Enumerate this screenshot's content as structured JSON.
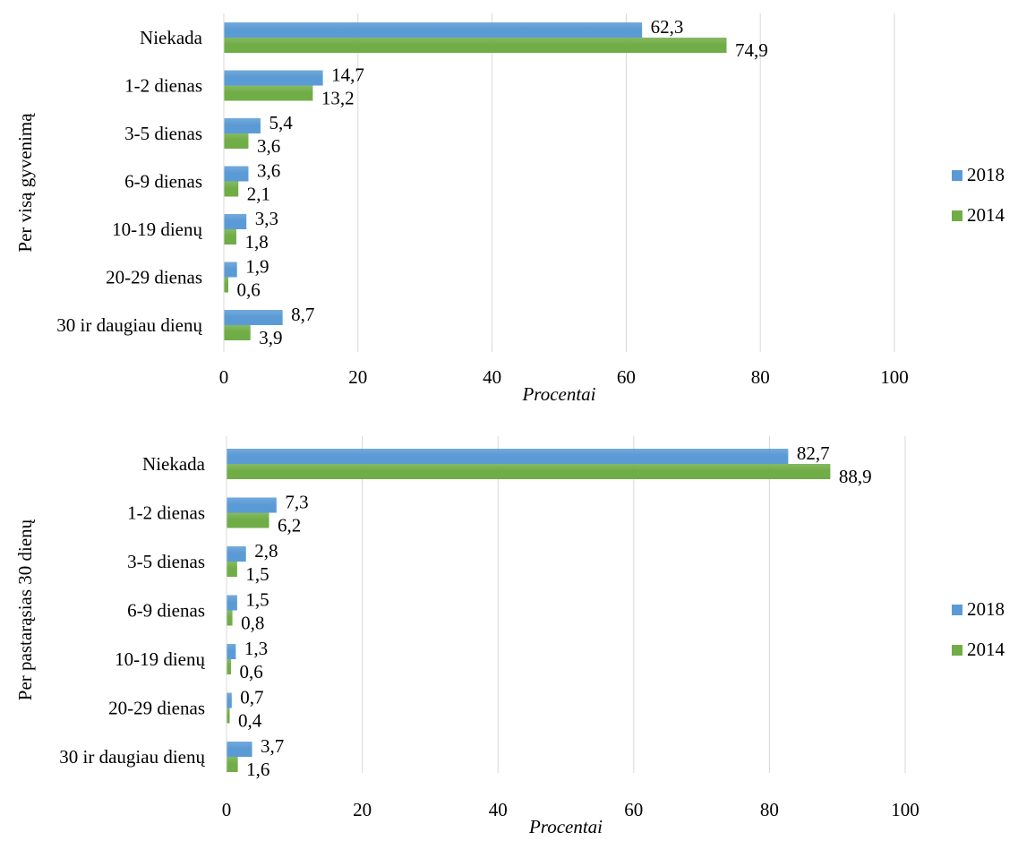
{
  "chart_data": [
    {
      "type": "bar",
      "orientation": "horizontal",
      "ylabel": "Per visą gyvenimą",
      "xlabel": "Procentai",
      "categories": [
        "Niekada",
        "1-2 dienas",
        "3-5 dienas",
        "6-9 dienas",
        "10-19 dienų",
        "20-29 dienas",
        "30 ir daugiau dienų"
      ],
      "series": [
        {
          "name": "2018",
          "color": "#5B9BD5",
          "values": [
            62.3,
            14.7,
            5.4,
            3.6,
            3.3,
            1.9,
            8.7
          ],
          "labels": [
            "62,3",
            "14,7",
            "5,4",
            "3,6",
            "3,3",
            "1,9",
            "8,7"
          ]
        },
        {
          "name": "2014",
          "color": "#70AD47",
          "values": [
            74.9,
            13.2,
            3.6,
            2.1,
            1.8,
            0.6,
            3.9
          ],
          "labels": [
            "74,9",
            "13,2",
            "3,6",
            "2,1",
            "1,8",
            "0,6",
            "3,9"
          ]
        }
      ],
      "xlim": [
        0,
        100
      ],
      "xticks": [
        "0",
        "20",
        "40",
        "60",
        "80",
        "100"
      ],
      "grid": true,
      "legend": "right"
    },
    {
      "type": "bar",
      "orientation": "horizontal",
      "ylabel": "Per pastarąsias 30 dienų",
      "xlabel": "Procentai",
      "categories": [
        "Niekada",
        "1-2 dienas",
        "3-5 dienas",
        "6-9 dienas",
        "10-19 dienų",
        "20-29 dienas",
        "30 ir daugiau dienų"
      ],
      "series": [
        {
          "name": "2018",
          "color": "#5B9BD5",
          "values": [
            82.7,
            7.3,
            2.8,
            1.5,
            1.3,
            0.7,
            3.7
          ],
          "labels": [
            "82,7",
            "7,3",
            "2,8",
            "1,5",
            "1,3",
            "0,7",
            "3,7"
          ]
        },
        {
          "name": "2014",
          "color": "#70AD47",
          "values": [
            88.9,
            6.2,
            1.5,
            0.8,
            0.6,
            0.4,
            1.6
          ],
          "labels": [
            "88,9",
            "6,2",
            "1,5",
            "0,8",
            "0,6",
            "0,4",
            "1,6"
          ]
        }
      ],
      "xlim": [
        0,
        100
      ],
      "xticks": [
        "0",
        "20",
        "40",
        "60",
        "80",
        "100"
      ],
      "grid": true,
      "legend": "right"
    }
  ]
}
